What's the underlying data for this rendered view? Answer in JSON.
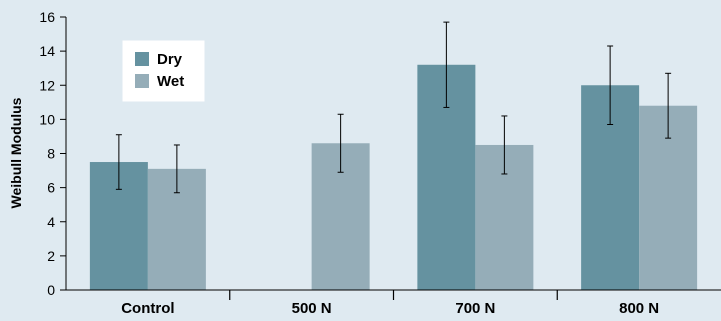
{
  "chart_data": {
    "type": "bar",
    "title": "",
    "xlabel": "",
    "ylabel": "Weibull Modulus",
    "ylim": [
      0,
      16
    ],
    "yticks": [
      0,
      2,
      4,
      6,
      8,
      10,
      12,
      14,
      16
    ],
    "categories": [
      "Control",
      "500 N",
      "700 N",
      "800 N"
    ],
    "series": [
      {
        "name": "Dry",
        "color": "#6592a0",
        "values": [
          7.5,
          null,
          13.2,
          12.0
        ],
        "error": [
          1.6,
          null,
          2.5,
          2.3
        ]
      },
      {
        "name": "Wet",
        "color": "#95adb8",
        "values": [
          7.1,
          8.6,
          8.5,
          10.8
        ],
        "error": [
          1.4,
          1.7,
          1.7,
          1.9
        ]
      }
    ],
    "grid": false,
    "legend_position": "top-left"
  }
}
